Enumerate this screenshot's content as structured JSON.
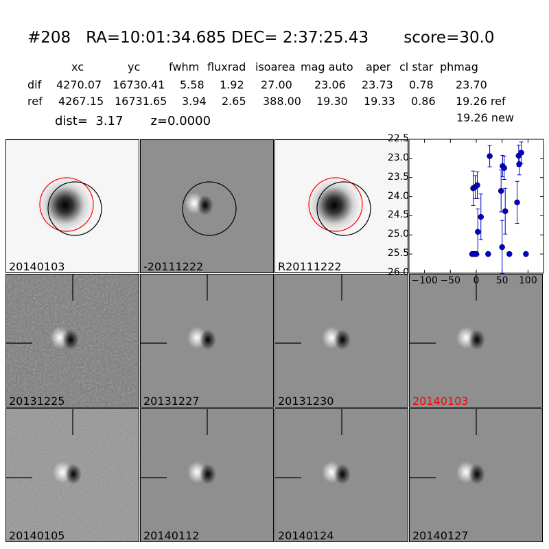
{
  "header": {
    "title": "#208   RA=10:01:34.685 DEC= 2:37:25.43       score=30.0",
    "columns": [
      "xc",
      "yc",
      "fwhm",
      "fluxrad",
      "isoarea",
      "mag auto",
      "aper",
      "cl star",
      "phmag"
    ],
    "rows": [
      {
        "label": "dif",
        "values": [
          "4270.07",
          "16730.41",
          "5.58",
          "1.92",
          "27.00",
          "23.06",
          "23.73",
          "0.78",
          "23.70"
        ]
      },
      {
        "label": "ref",
        "values": [
          "4267.15",
          "16731.65",
          "3.94",
          "2.65",
          "388.00",
          "19.30",
          "19.33",
          "0.86",
          "19.26 ref"
        ]
      }
    ],
    "extra_phmag": "19.26 new",
    "dist_line": "dist=  3.17       z=0.0000"
  },
  "stamps": [
    {
      "label": "20140103",
      "kind": "ref",
      "circles": "both"
    },
    {
      "label": "-20111222",
      "kind": "diff",
      "circles": "black"
    },
    {
      "label": "R20111222",
      "kind": "ref",
      "circles": "both"
    },
    {
      "label": "20131225",
      "kind": "noisy"
    },
    {
      "label": "20131227",
      "kind": "diff"
    },
    {
      "label": "20131230",
      "kind": "diff"
    },
    {
      "label": "20140103",
      "kind": "diff",
      "highlight": true
    },
    {
      "label": "20140105",
      "kind": "verynoisy"
    },
    {
      "label": "20140112",
      "kind": "diff"
    },
    {
      "label": "20140124",
      "kind": "diff"
    },
    {
      "label": "20140127",
      "kind": "diff"
    }
  ],
  "colors": {
    "marker": "#0000cc",
    "ref_circle": "#ff0000",
    "det_circle": "#000000",
    "highlight_label": "#ff0000"
  },
  "chart_data": {
    "type": "scatter",
    "x_ticks": [
      "−100",
      "−50",
      "0",
      "50",
      "100"
    ],
    "x_tick_values": [
      -100,
      -50,
      0,
      50,
      100
    ],
    "y_ticks": [
      "22.5",
      "23.0",
      "23.5",
      "24.0",
      "24.5",
      "25.0",
      "25.5",
      "26.0"
    ],
    "y_tick_values": [
      22.5,
      23.0,
      23.5,
      24.0,
      24.5,
      25.0,
      25.5,
      26.0
    ],
    "xlim": [
      -130,
      130
    ],
    "ylim": [
      26.0,
      22.5
    ],
    "y_inverted": true,
    "points": [
      {
        "x": -8,
        "y": 25.5,
        "err": 0.05
      },
      {
        "x": -6,
        "y": 23.78,
        "err": 0.45
      },
      {
        "x": -4,
        "y": 25.5,
        "err": 0.05
      },
      {
        "x": -2,
        "y": 23.75,
        "err": 0.3
      },
      {
        "x": 0,
        "y": 25.5,
        "err": 0.05
      },
      {
        "x": 2,
        "y": 23.7,
        "err": 0.35
      },
      {
        "x": 3,
        "y": 24.92,
        "err": 0.6
      },
      {
        "x": 9,
        "y": 24.53,
        "err": 0.6
      },
      {
        "x": 23,
        "y": 25.5,
        "err": 0.05
      },
      {
        "x": 26,
        "y": 22.94,
        "err": 0.28
      },
      {
        "x": 48,
        "y": 23.85,
        "err": 0.55
      },
      {
        "x": 50,
        "y": 25.32,
        "err": 0.7
      },
      {
        "x": 51,
        "y": 23.2,
        "err": 0.28
      },
      {
        "x": 54,
        "y": 23.25,
        "err": 0.3
      },
      {
        "x": 56,
        "y": 24.38,
        "err": 0.6
      },
      {
        "x": 64,
        "y": 25.5,
        "err": 0.05
      },
      {
        "x": 79,
        "y": 24.15,
        "err": 0.55
      },
      {
        "x": 82,
        "y": 22.93,
        "err": 0.28
      },
      {
        "x": 83,
        "y": 23.15,
        "err": 0.28
      },
      {
        "x": 87,
        "y": 22.85,
        "err": 0.28
      },
      {
        "x": 96,
        "y": 25.5,
        "err": 0.05
      }
    ]
  }
}
